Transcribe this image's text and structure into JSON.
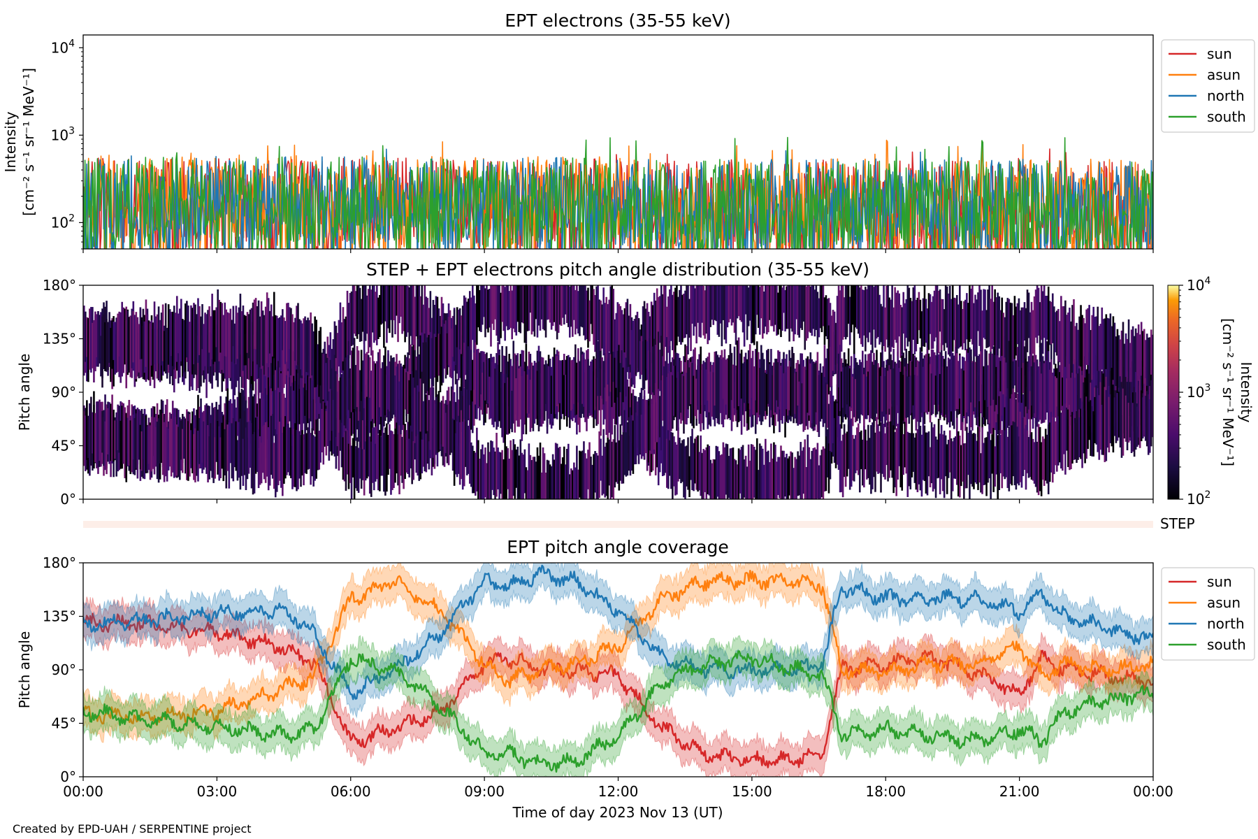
{
  "footer": {
    "credit": "Created by EPD-UAH / SERPENTINE project"
  },
  "chart_data": [
    {
      "id": "panel1",
      "type": "line",
      "title": "EPT electrons (35-55 keV)",
      "ylabel_line1": "Intensity",
      "ylabel_line2": "[cm⁻² s⁻¹ sr⁻¹ MeV⁻¹]",
      "yscale": "log",
      "ylim": [
        50,
        14000
      ],
      "yticks": [
        {
          "value": 100,
          "label": "10",
          "exp": "2"
        },
        {
          "value": 1000,
          "label": "10",
          "exp": "3"
        },
        {
          "value": 10000,
          "label": "10",
          "exp": "4"
        }
      ],
      "xlim": [
        "2023-11-13 00:00",
        "2023-11-14 00:00"
      ],
      "legend_position": "outside-right",
      "series": [
        {
          "name": "sun",
          "color": "#d62728",
          "typical": 160,
          "spread": 0.55,
          "note_peak": 700
        },
        {
          "name": "asun",
          "color": "#ff7f0e",
          "typical": 170,
          "spread": 0.55,
          "note_peak": 900
        },
        {
          "name": "north",
          "color": "#1f77b4",
          "typical": 165,
          "spread": 0.55,
          "note_peak": 700
        },
        {
          "name": "south",
          "color": "#2ca02c",
          "typical": 165,
          "spread": 0.55,
          "note_peak": 950
        }
      ]
    },
    {
      "id": "panel2",
      "type": "heatmap",
      "title": "STEP + EPT electrons pitch angle distribution (35-55 keV)",
      "ylabel": "Pitch angle",
      "ylim": [
        0,
        180
      ],
      "yticks": [
        "0°",
        "45°",
        "90°",
        "135°",
        "180°"
      ],
      "xlim": [
        "2023-11-13 00:00",
        "2023-11-14 00:00"
      ],
      "colorbar": {
        "label_line1": "Intensity",
        "label_line2": "[cm⁻² s⁻¹ sr⁻¹ MeV⁻¹]",
        "scale": "log",
        "range": [
          100,
          10000
        ],
        "ticks": [
          {
            "label": "10",
            "exp": "2"
          },
          {
            "label": "10",
            "exp": "3"
          },
          {
            "label": "10",
            "exp": "4"
          }
        ],
        "colormap": "inferno"
      },
      "strip_label": "STEP"
    },
    {
      "id": "panel3",
      "type": "line",
      "title": "EPT pitch angle coverage",
      "ylabel": "Pitch angle",
      "xlabel": "Time of day 2023 Nov 13 (UT)",
      "ylim": [
        0,
        180
      ],
      "yticks": [
        "0°",
        "45°",
        "90°",
        "135°",
        "180°"
      ],
      "xticks": [
        "00:00",
        "03:00",
        "06:00",
        "09:00",
        "12:00",
        "15:00",
        "18:00",
        "21:00",
        "00:00"
      ],
      "xlim_hours": [
        0,
        24
      ],
      "legend_position": "outside-right",
      "band_halfwidth_deg": 14,
      "series": [
        {
          "name": "sun",
          "color": "#d62728",
          "key_points": [
            [
              0,
              130
            ],
            [
              1.5,
              128
            ],
            [
              3,
              122
            ],
            [
              4.5,
              108
            ],
            [
              5.2,
              95
            ],
            [
              6,
              30
            ],
            [
              7,
              40
            ],
            [
              8,
              55
            ],
            [
              9,
              95
            ],
            [
              9.5,
              100
            ],
            [
              10.3,
              90
            ],
            [
              11,
              90
            ],
            [
              12,
              85
            ],
            [
              13,
              40
            ],
            [
              14,
              18
            ],
            [
              15,
              14
            ],
            [
              16,
              15
            ],
            [
              16.6,
              20
            ],
            [
              17,
              90
            ],
            [
              18,
              95
            ],
            [
              19,
              100
            ],
            [
              20,
              88
            ],
            [
              21,
              70
            ],
            [
              21.5,
              100
            ],
            [
              22,
              90
            ],
            [
              23,
              85
            ],
            [
              24,
              80
            ]
          ]
        },
        {
          "name": "asun",
          "color": "#ff7f0e",
          "key_points": [
            [
              0,
              52
            ],
            [
              1.5,
              50
            ],
            [
              3,
              55
            ],
            [
              4.5,
              75
            ],
            [
              5.2,
              85
            ],
            [
              6,
              150
            ],
            [
              7,
              165
            ],
            [
              8,
              140
            ],
            [
              9,
              95
            ],
            [
              9.5,
              80
            ],
            [
              10.3,
              90
            ],
            [
              11,
              95
            ],
            [
              12,
              110
            ],
            [
              13,
              150
            ],
            [
              14,
              165
            ],
            [
              15,
              165
            ],
            [
              16,
              165
            ],
            [
              16.6,
              160
            ],
            [
              17,
              90
            ],
            [
              18,
              88
            ],
            [
              19,
              95
            ],
            [
              20,
              95
            ],
            [
              21,
              110
            ],
            [
              21.5,
              85
            ],
            [
              22,
              95
            ],
            [
              23,
              90
            ],
            [
              24,
              95
            ]
          ]
        },
        {
          "name": "north",
          "color": "#1f77b4",
          "key_points": [
            [
              0,
              128
            ],
            [
              1.5,
              132
            ],
            [
              3,
              138
            ],
            [
              4.5,
              140
            ],
            [
              5.2,
              120
            ],
            [
              6,
              70
            ],
            [
              7,
              90
            ],
            [
              8,
              120
            ],
            [
              9,
              165
            ],
            [
              9.5,
              160
            ],
            [
              10.3,
              170
            ],
            [
              11,
              165
            ],
            [
              12,
              140
            ],
            [
              13,
              100
            ],
            [
              14,
              90
            ],
            [
              15,
              90
            ],
            [
              16,
              90
            ],
            [
              16.6,
              95
            ],
            [
              17,
              160
            ],
            [
              18,
              150
            ],
            [
              19,
              150
            ],
            [
              20,
              150
            ],
            [
              21,
              140
            ],
            [
              21.5,
              155
            ],
            [
              22,
              135
            ],
            [
              23,
              125
            ],
            [
              24,
              115
            ]
          ]
        },
        {
          "name": "south",
          "color": "#2ca02c",
          "key_points": [
            [
              0,
              55
            ],
            [
              1.5,
              48
            ],
            [
              3,
              42
            ],
            [
              4.5,
              35
            ],
            [
              5.2,
              40
            ],
            [
              6,
              100
            ],
            [
              7,
              90
            ],
            [
              8,
              60
            ],
            [
              9,
              20
            ],
            [
              9.5,
              20
            ],
            [
              10.3,
              10
            ],
            [
              11,
              12
            ],
            [
              12,
              35
            ],
            [
              13,
              80
            ],
            [
              14,
              95
            ],
            [
              15,
              100
            ],
            [
              16,
              90
            ],
            [
              16.6,
              85
            ],
            [
              17,
              35
            ],
            [
              18,
              40
            ],
            [
              19,
              35
            ],
            [
              20,
              30
            ],
            [
              21,
              40
            ],
            [
              21.5,
              30
            ],
            [
              22,
              55
            ],
            [
              23,
              65
            ],
            [
              24,
              70
            ]
          ]
        }
      ]
    }
  ]
}
